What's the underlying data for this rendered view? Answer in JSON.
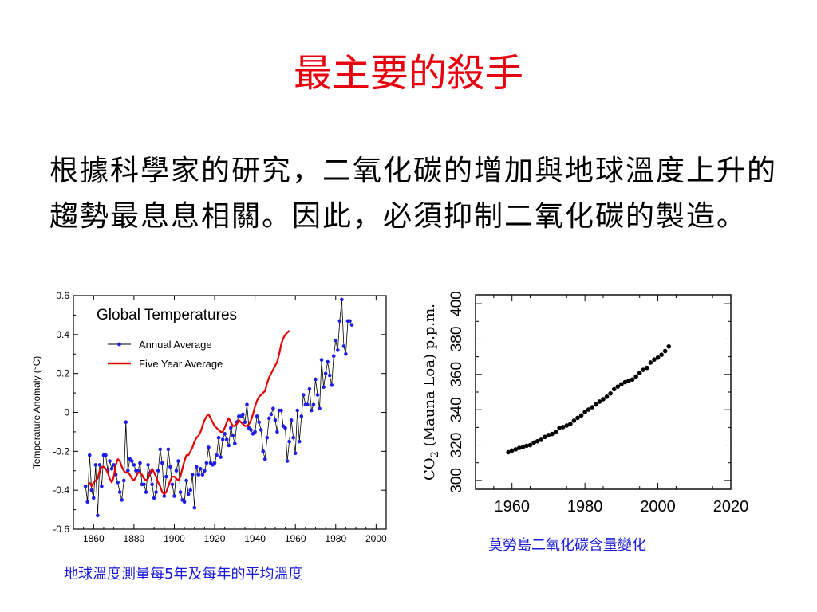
{
  "title": "最主要的殺手",
  "body_text": "根據科學家的研究，二氧化碳的增加與地球溫度上升的趨勢最息息相關。因此，必須抑制二氧化碳的製造。",
  "colors": {
    "title": "#e8000e",
    "caption": "#1a1ad8",
    "annual": "#1e1ee6",
    "five_year": "#e00000"
  },
  "captions": {
    "left": "地球溫度測量每5年及每年的平均溫度",
    "right": "莫勞島二氧化碳含量變化"
  },
  "chart_data": [
    {
      "type": "line",
      "title": "Global Temperatures",
      "xlabel": "",
      "ylabel": "Temperature Anomaly (°C)",
      "xlim": [
        1850,
        2005
      ],
      "ylim": [
        -0.6,
        0.6
      ],
      "x_ticks": [
        1860,
        1880,
        1900,
        1920,
        1940,
        1960,
        1980,
        2000
      ],
      "y_ticks": [
        0.6,
        0.4,
        0.2,
        0,
        -0.2,
        -0.4,
        -0.6
      ],
      "y_tick_labels": [
        "0.6",
        "0.4",
        "0.2",
        "0",
        "-0.2",
        "-0.4",
        "-0.6"
      ],
      "legend": [
        "Annual Average",
        "Five Year Average"
      ],
      "series": [
        {
          "name": "Annual Average",
          "style": "line-markers",
          "x_start": 1856,
          "values": [
            -0.38,
            -0.46,
            -0.22,
            -0.4,
            -0.44,
            -0.27,
            -0.53,
            -0.27,
            -0.38,
            -0.22,
            -0.22,
            -0.3,
            -0.25,
            -0.29,
            -0.27,
            -0.32,
            -0.36,
            -0.41,
            -0.45,
            -0.35,
            -0.05,
            -0.3,
            -0.24,
            -0.25,
            -0.27,
            -0.3,
            -0.3,
            -0.26,
            -0.37,
            -0.37,
            -0.41,
            -0.27,
            -0.31,
            -0.37,
            -0.44,
            -0.41,
            -0.3,
            -0.19,
            -0.26,
            -0.43,
            -0.33,
            -0.19,
            -0.28,
            -0.37,
            -0.43,
            -0.3,
            -0.25,
            -0.41,
            -0.45,
            -0.46,
            -0.35,
            -0.42,
            -0.4,
            -0.32,
            -0.49,
            -0.28,
            -0.32,
            -0.29,
            -0.32,
            -0.3,
            -0.26,
            -0.18,
            -0.26,
            -0.27,
            -0.26,
            -0.22,
            -0.13,
            -0.23,
            -0.14,
            -0.11,
            -0.14,
            -0.17,
            -0.08,
            -0.12,
            -0.16,
            -0.05,
            -0.02,
            -0.02,
            -0.01,
            -0.05,
            0.04,
            -0.08,
            -0.09,
            -0.11,
            -0.1,
            -0.02,
            -0.05,
            -0.09,
            -0.2,
            -0.24,
            -0.13,
            -0.03,
            -0.01,
            0.02,
            -0.04,
            -0.1,
            0.01,
            0.01,
            -0.07,
            -0.08,
            -0.25,
            -0.15,
            -0.04,
            -0.13,
            -0.21,
            0.01,
            -0.15,
            -0.02,
            0.09,
            0.04,
            0.04,
            0.12,
            0.01,
            0.04,
            0.17,
            0.09,
            0.02,
            0.27,
            0.13,
            0.2,
            0.26,
            0.19,
            0.14,
            0.29,
            0.37,
            0.32,
            0.47,
            0.58,
            0.34,
            0.3,
            0.47,
            0.47,
            0.45
          ],
          "values_note_removed": ""
        },
        {
          "name": "Five Year Average",
          "style": "smooth-line",
          "x_start": 1858,
          "values": [
            -0.36,
            -0.38,
            -0.36,
            -0.35,
            -0.34,
            -0.3,
            -0.28,
            -0.28,
            -0.29,
            -0.31,
            -0.34,
            -0.36,
            -0.33,
            -0.27,
            -0.24,
            -0.25,
            -0.28,
            -0.3,
            -0.31,
            -0.31,
            -0.32,
            -0.34,
            -0.35,
            -0.33,
            -0.31,
            -0.31,
            -0.32,
            -0.34,
            -0.35,
            -0.34,
            -0.31,
            -0.29,
            -0.31,
            -0.33,
            -0.36,
            -0.38,
            -0.41,
            -0.42,
            -0.41,
            -0.38,
            -0.35,
            -0.33,
            -0.33,
            -0.34,
            -0.35,
            -0.33,
            -0.29,
            -0.25,
            -0.22,
            -0.22,
            -0.2,
            -0.18,
            -0.15,
            -0.13,
            -0.12,
            -0.1,
            -0.07,
            -0.04,
            -0.02,
            -0.01,
            -0.03,
            -0.05,
            -0.07,
            -0.08,
            -0.09,
            -0.1,
            -0.1,
            -0.08,
            -0.05,
            -0.03,
            -0.05,
            -0.07,
            -0.07,
            -0.06,
            -0.04,
            -0.05,
            -0.06,
            -0.07,
            -0.07,
            -0.06,
            -0.04,
            -0.01,
            0.03,
            0.06,
            0.08,
            0.09,
            0.1,
            0.11,
            0.15,
            0.18,
            0.2,
            0.22,
            0.24,
            0.26,
            0.3,
            0.35,
            0.38,
            0.4,
            0.41,
            0.42
          ]
        }
      ]
    },
    {
      "type": "scatter",
      "title": "",
      "xlabel": "",
      "ylabel_parts": [
        "CO",
        "2",
        " (Mauna Loa) p.p.m."
      ],
      "xlim": [
        1950,
        2020
      ],
      "ylim": [
        295,
        405
      ],
      "x_ticks": [
        1960,
        1980,
        2000,
        2020
      ],
      "y_ticks": [
        300,
        320,
        340,
        360,
        380,
        400
      ],
      "series": [
        {
          "x_start": 1959,
          "values": [
            316.0,
            316.9,
            317.6,
            318.4,
            318.9,
            319.6,
            320.0,
            321.4,
            322.2,
            323.0,
            324.6,
            325.7,
            326.3,
            327.5,
            329.7,
            330.2,
            331.1,
            332.0,
            333.8,
            335.4,
            336.8,
            338.7,
            340.1,
            341.4,
            343.0,
            344.6,
            346.0,
            347.4,
            349.2,
            351.6,
            353.1,
            354.4,
            355.6,
            356.4,
            357.1,
            358.8,
            360.8,
            362.6,
            363.7,
            366.7,
            368.4,
            369.5,
            371.1,
            373.2,
            375.8
          ]
        }
      ]
    }
  ]
}
